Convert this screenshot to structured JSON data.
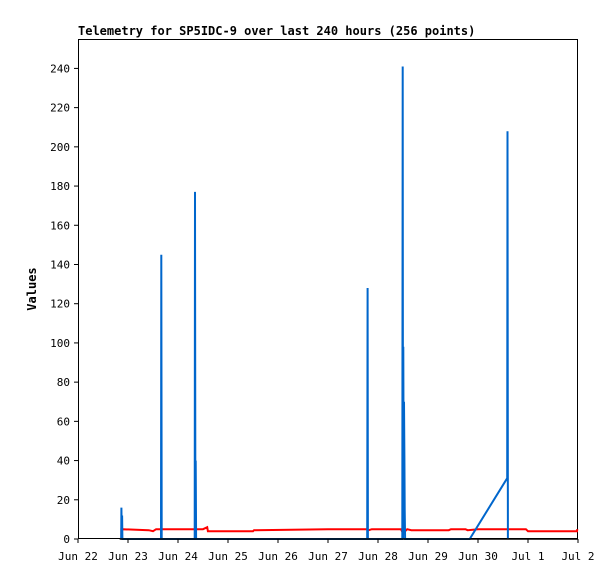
{
  "chart_data": {
    "type": "line",
    "title": "Telemetry for SP5IDC-9 over last 240 hours (256 points)",
    "xlabel": "",
    "ylabel": "Values",
    "x_range": [
      "2020-06-22 00:00",
      "2020-07-02 00:00"
    ],
    "ylim": [
      0,
      255
    ],
    "y_ticks": [
      "0",
      "20",
      "40",
      "60",
      "80",
      "100",
      "120",
      "140",
      "160",
      "180",
      "200",
      "220",
      "240"
    ],
    "x_ticks": [
      {
        "at": "2020-06-22 00:00",
        "label": "Jun 22"
      },
      {
        "at": "2020-06-23 00:00",
        "label": "Jun 23"
      },
      {
        "at": "2020-06-24 00:00",
        "label": "Jun 24"
      },
      {
        "at": "2020-06-25 00:00",
        "label": "Jun 25"
      },
      {
        "at": "2020-06-26 00:00",
        "label": "Jun 26"
      },
      {
        "at": "2020-06-27 00:00",
        "label": "Jun 27"
      },
      {
        "at": "2020-06-28 00:00",
        "label": "Jun 28"
      },
      {
        "at": "2020-06-29 00:00",
        "label": "Jun 29"
      },
      {
        "at": "2020-06-30 00:00",
        "label": "Jun 30"
      },
      {
        "at": "2020-07-01 00:00",
        "label": "Jul 1"
      },
      {
        "at": "2020-07-02 00:00",
        "label": "Jul 2"
      }
    ],
    "grid": false,
    "legend": "none",
    "series": [
      {
        "color": "#ff0000",
        "points": [
          [
            "2020-06-22 20:50",
            0
          ],
          [
            "2020-06-22 20:50",
            5
          ],
          [
            "2020-06-23 10:00",
            4.5
          ],
          [
            "2020-06-23 12:00",
            4
          ],
          [
            "2020-06-23 13:30",
            5
          ],
          [
            "2020-06-24 12:00",
            5
          ],
          [
            "2020-06-24 14:00",
            6
          ],
          [
            "2020-06-24 14:20",
            4
          ],
          [
            "2020-06-25 12:00",
            4
          ],
          [
            "2020-06-25 12:30",
            4.5
          ],
          [
            "2020-06-27 00:00",
            5
          ],
          [
            "2020-06-27 19:00",
            5
          ],
          [
            "2020-06-27 19:30",
            4.5
          ],
          [
            "2020-06-27 21:00",
            5
          ],
          [
            "2020-06-28 11:00",
            5
          ],
          [
            "2020-06-28 11:30",
            4
          ],
          [
            "2020-06-28 13:00",
            4
          ],
          [
            "2020-06-28 14:00",
            5
          ],
          [
            "2020-06-28 16:00",
            4.5
          ],
          [
            "2020-06-29 10:00",
            4.5
          ],
          [
            "2020-06-29 11:00",
            5
          ],
          [
            "2020-06-29 18:00",
            5
          ],
          [
            "2020-06-29 19:00",
            4.5
          ],
          [
            "2020-06-30 00:00",
            5
          ],
          [
            "2020-06-30 23:00",
            5
          ],
          [
            "2020-07-01 00:00",
            4
          ],
          [
            "2020-07-01 23:30",
            4
          ],
          [
            "2020-07-01 23:40",
            5
          ]
        ]
      },
      {
        "color": "#0066cc",
        "points": [
          [
            "2020-06-22 20:45",
            0
          ],
          [
            "2020-06-22 20:50",
            16
          ],
          [
            "2020-06-22 21:00",
            0
          ],
          [
            "2020-06-22 21:10",
            12
          ],
          [
            "2020-06-22 21:20",
            0
          ],
          [
            "2020-06-23 15:50",
            0
          ],
          [
            "2020-06-23 16:00",
            145
          ],
          [
            "2020-06-23 16:10",
            0
          ],
          [
            "2020-06-24 08:00",
            0
          ],
          [
            "2020-06-24 08:10",
            177
          ],
          [
            "2020-06-24 08:20",
            0
          ],
          [
            "2020-06-24 08:30",
            40
          ],
          [
            "2020-06-24 08:40",
            0
          ],
          [
            "2020-06-27 18:50",
            0
          ],
          [
            "2020-06-27 19:00",
            128
          ],
          [
            "2020-06-27 19:10",
            0
          ],
          [
            "2020-06-28 11:40",
            0
          ],
          [
            "2020-06-28 11:50",
            241
          ],
          [
            "2020-06-28 12:00",
            0
          ],
          [
            "2020-06-28 12:10",
            98
          ],
          [
            "2020-06-28 12:20",
            20
          ],
          [
            "2020-06-28 12:30",
            70
          ],
          [
            "2020-06-28 12:40",
            42
          ],
          [
            "2020-06-28 12:50",
            15
          ],
          [
            "2020-06-28 13:00",
            0
          ],
          [
            "2020-06-29 20:00",
            0
          ],
          [
            "2020-06-30 14:00",
            31
          ],
          [
            "2020-06-30 14:10",
            208
          ],
          [
            "2020-06-30 14:20",
            0
          ]
        ]
      },
      {
        "color": "#000000",
        "points": [
          [
            "2020-06-22 20:00",
            0
          ],
          [
            "2020-07-01 23:59",
            0
          ]
        ]
      }
    ]
  }
}
